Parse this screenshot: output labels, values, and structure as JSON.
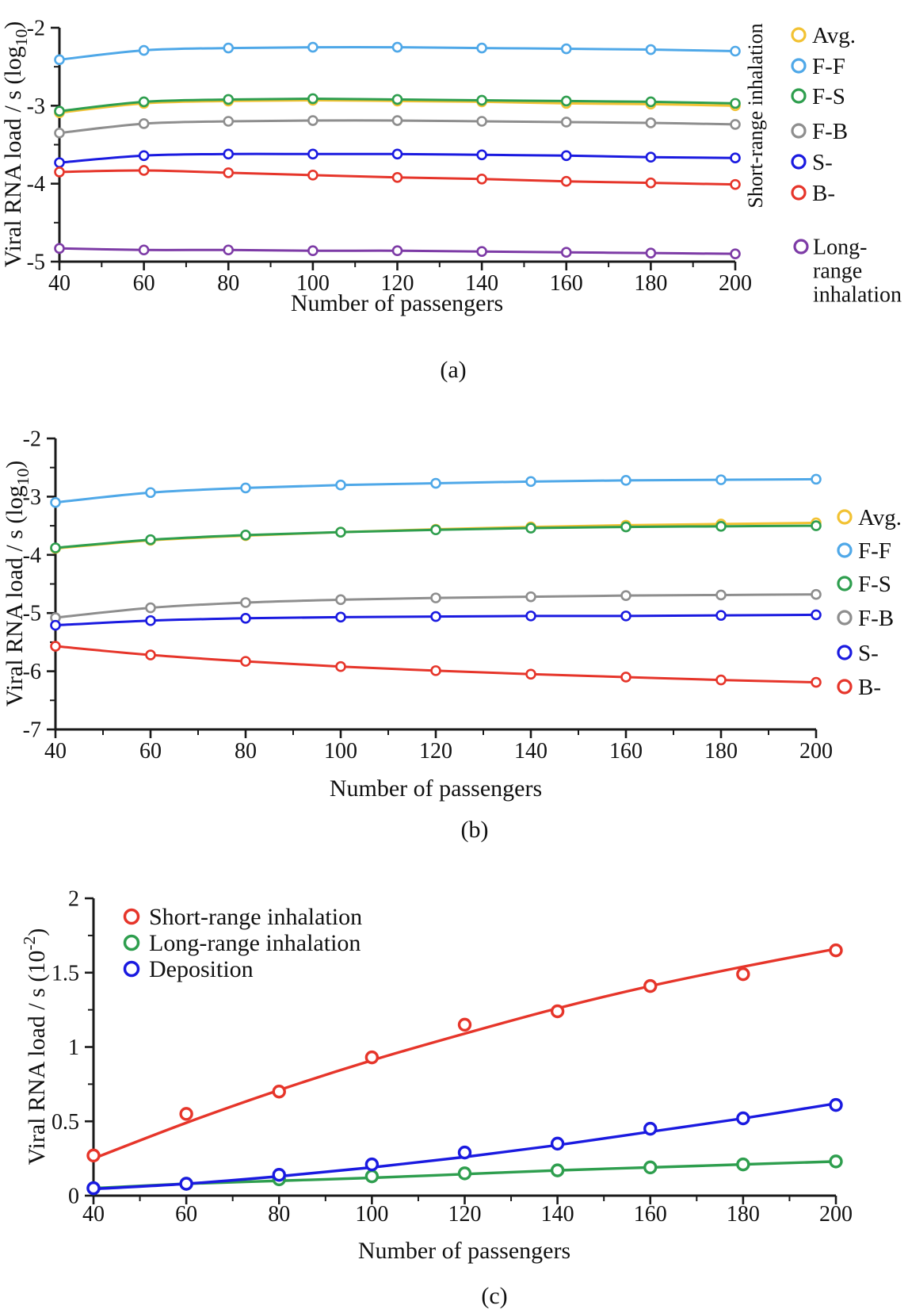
{
  "figure": {
    "captions": {
      "a": "(a)",
      "b": "(b)",
      "c": "(c)"
    }
  },
  "colors": {
    "avg_yellow": "#F2C233",
    "ff_lightblue": "#4FA8E8",
    "fs_green": "#2E9E4E",
    "fb_gray": "#8E8E8E",
    "s_blue": "#1A1AE0",
    "b_red": "#E6352A",
    "longrange_purple": "#7D3BA6",
    "axis_black": "#1a1a1a"
  },
  "chart_data": [
    {
      "panel": "a",
      "type": "line",
      "xlabel": "Number of passengers",
      "ylabel": {
        "prefix": "Viral RNA load / s  (log",
        "script": "10",
        "script_type": "sub",
        "suffix": ")"
      },
      "x": [
        40,
        60,
        80,
        100,
        120,
        140,
        160,
        180,
        200
      ],
      "xlim": [
        40,
        200
      ],
      "ylim": [
        -5,
        -2
      ],
      "xticks": [
        40,
        60,
        80,
        100,
        120,
        140,
        160,
        180,
        200
      ],
      "yticks": [
        -2,
        -3,
        -4,
        -5
      ],
      "grid": false,
      "legend_position": "right-outside",
      "legend_title": "Short-range inhalation",
      "series": [
        {
          "name": "Avg.",
          "color": "#F2C233",
          "values": [
            -3.09,
            -2.97,
            -2.94,
            -2.93,
            -2.94,
            -2.95,
            -2.97,
            -2.98,
            -3.0
          ]
        },
        {
          "name": "F-F",
          "color": "#4FA8E8",
          "values": [
            -2.41,
            -2.29,
            -2.26,
            -2.25,
            -2.25,
            -2.26,
            -2.27,
            -2.28,
            -2.3
          ]
        },
        {
          "name": "F-S",
          "color": "#2E9E4E",
          "values": [
            -3.07,
            -2.95,
            -2.92,
            -2.91,
            -2.92,
            -2.93,
            -2.94,
            -2.95,
            -2.97
          ]
        },
        {
          "name": "F-B",
          "color": "#8E8E8E",
          "values": [
            -3.35,
            -3.23,
            -3.2,
            -3.19,
            -3.19,
            -3.2,
            -3.21,
            -3.22,
            -3.24
          ]
        },
        {
          "name": "S-",
          "color": "#1A1AE0",
          "values": [
            -3.73,
            -3.64,
            -3.62,
            -3.62,
            -3.62,
            -3.63,
            -3.64,
            -3.66,
            -3.67
          ]
        },
        {
          "name": "B-",
          "color": "#E6352A",
          "values": [
            -3.85,
            -3.83,
            -3.86,
            -3.89,
            -3.92,
            -3.94,
            -3.97,
            -3.99,
            -4.01
          ]
        }
      ],
      "extra_series": {
        "name": "Long-range inhalation",
        "label_lines": [
          "Long-",
          "range",
          "inhalation"
        ],
        "color": "#7D3BA6",
        "values": [
          -4.83,
          -4.85,
          -4.85,
          -4.86,
          -4.86,
          -4.87,
          -4.88,
          -4.89,
          -4.9
        ]
      }
    },
    {
      "panel": "b",
      "type": "line",
      "xlabel": "Number of passengers",
      "ylabel": {
        "prefix": "Viral RNA load / s  (log",
        "script": "10",
        "script_type": "sub",
        "suffix": ")"
      },
      "x": [
        40,
        60,
        80,
        100,
        120,
        140,
        160,
        180,
        200
      ],
      "xlim": [
        40,
        200
      ],
      "ylim": [
        -7,
        -2
      ],
      "xticks": [
        40,
        60,
        80,
        100,
        120,
        140,
        160,
        180,
        200
      ],
      "yticks": [
        -2,
        -3,
        -4,
        -5,
        -6,
        -7
      ],
      "grid": false,
      "legend_position": "right-outside",
      "legend_title": "",
      "series": [
        {
          "name": "Avg.",
          "color": "#F2C233",
          "values": [
            -3.89,
            -3.75,
            -3.67,
            -3.61,
            -3.56,
            -3.52,
            -3.49,
            -3.47,
            -3.45
          ]
        },
        {
          "name": "F-F",
          "color": "#4FA8E8",
          "values": [
            -3.1,
            -2.93,
            -2.85,
            -2.8,
            -2.77,
            -2.74,
            -2.72,
            -2.71,
            -2.7
          ]
        },
        {
          "name": "F-S",
          "color": "#2E9E4E",
          "values": [
            -3.88,
            -3.74,
            -3.66,
            -3.61,
            -3.57,
            -3.54,
            -3.52,
            -3.51,
            -3.5
          ]
        },
        {
          "name": "F-B",
          "color": "#8E8E8E",
          "values": [
            -5.08,
            -4.91,
            -4.82,
            -4.77,
            -4.74,
            -4.72,
            -4.7,
            -4.69,
            -4.68
          ]
        },
        {
          "name": "S-",
          "color": "#1A1AE0",
          "values": [
            -5.21,
            -5.13,
            -5.09,
            -5.07,
            -5.06,
            -5.05,
            -5.05,
            -5.04,
            -5.03
          ]
        },
        {
          "name": "B-",
          "color": "#E6352A",
          "values": [
            -5.57,
            -5.72,
            -5.83,
            -5.92,
            -5.99,
            -6.05,
            -6.1,
            -6.15,
            -6.19
          ]
        }
      ]
    },
    {
      "panel": "c",
      "type": "scatter-with-fit",
      "xlabel": "Number of passengers",
      "ylabel": {
        "prefix": "Viral RNA load / s  (10",
        "script": "-2",
        "script_type": "sup",
        "suffix": ")"
      },
      "x": [
        40,
        60,
        80,
        100,
        120,
        140,
        160,
        180,
        200
      ],
      "xlim": [
        40,
        200
      ],
      "ylim": [
        0,
        2
      ],
      "xticks": [
        40,
        60,
        80,
        100,
        120,
        140,
        160,
        180,
        200
      ],
      "yticks": [
        0,
        0.5,
        1,
        1.5,
        2
      ],
      "ytick_labels": [
        "0",
        "0.5",
        "1",
        "1.5",
        "2"
      ],
      "grid": false,
      "legend_position": "top-left-inside",
      "series": [
        {
          "name": "Short-range inhalation",
          "color": "#E6352A",
          "values": [
            0.27,
            0.55,
            0.7,
            0.93,
            1.15,
            1.24,
            1.41,
            1.49,
            1.65
          ],
          "fit": [
            0.25,
            0.49,
            0.71,
            0.91,
            1.09,
            1.26,
            1.41,
            1.54,
            1.66
          ]
        },
        {
          "name": "Long-range inhalation",
          "color": "#2E9E4E",
          "values": [
            0.05,
            0.08,
            0.11,
            0.13,
            0.15,
            0.17,
            0.19,
            0.21,
            0.23
          ],
          "fit": [
            0.05,
            0.08,
            0.1,
            0.12,
            0.145,
            0.17,
            0.19,
            0.21,
            0.23
          ]
        },
        {
          "name": "Deposition",
          "color": "#1A1AE0",
          "values": [
            0.05,
            0.08,
            0.14,
            0.21,
            0.29,
            0.35,
            0.45,
            0.52,
            0.61
          ],
          "fit": [
            0.045,
            0.08,
            0.13,
            0.19,
            0.26,
            0.34,
            0.43,
            0.52,
            0.62
          ]
        }
      ]
    }
  ]
}
